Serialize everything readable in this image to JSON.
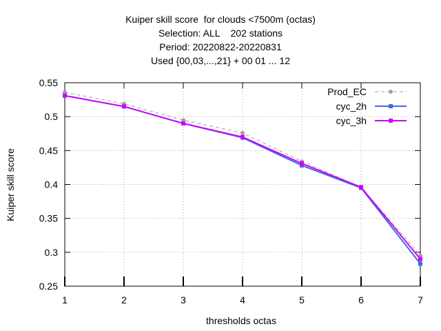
{
  "chart_data": {
    "type": "line",
    "title_lines": [
      "Kuiper skill score  for clouds <7500m (octas)",
      "Selection: ALL    202 stations",
      "Period: 20220822-20220831",
      "Used {00,03,...,21} + 00 01 ... 12"
    ],
    "xlabel": "thresholds octas",
    "ylabel": "Kuiper skill score",
    "x": [
      1,
      2,
      3,
      4,
      5,
      6,
      7
    ],
    "xlim": [
      1,
      7
    ],
    "ylim": [
      0.25,
      0.55
    ],
    "yticks": [
      0.25,
      0.3,
      0.35,
      0.4,
      0.45,
      0.5,
      0.55
    ],
    "ytick_labels": [
      "0.25",
      "0.3",
      "0.35",
      "0.4",
      "0.45",
      "0.5",
      "0.55"
    ],
    "xtick_labels": [
      "1",
      "2",
      "3",
      "4",
      "5",
      "6",
      "7"
    ],
    "grid": true,
    "legend_position": "top-right",
    "series": [
      {
        "name": "Prod_EC",
        "color": "#a0a0a0",
        "dashed": true,
        "marker": "circle",
        "values": [
          0.536,
          0.519,
          0.495,
          0.476,
          0.434,
          0.396,
          0.295
        ]
      },
      {
        "name": "cyc_2h",
        "color": "#4169e1",
        "dashed": false,
        "marker": "square",
        "values": [
          0.531,
          0.515,
          0.49,
          0.469,
          0.428,
          0.395,
          0.283
        ]
      },
      {
        "name": "cyc_3h",
        "color": "#cc00ff",
        "dashed": false,
        "marker": "square",
        "values": [
          0.531,
          0.515,
          0.49,
          0.47,
          0.431,
          0.396,
          0.29
        ]
      }
    ]
  }
}
